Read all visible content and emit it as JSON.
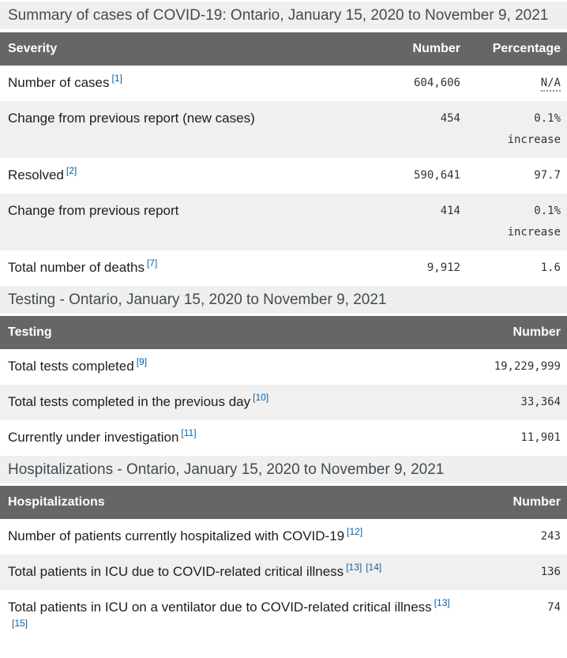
{
  "colors": {
    "header_bg": "#666666",
    "stripe_bg": "#f0f0f0",
    "caption_bg": "#efefef",
    "link_blue": "#0962a8"
  },
  "summary": {
    "caption": "Summary of cases of COVID-19: Ontario, January 15, 2020 to November 9, 2021",
    "col_severity": "Severity",
    "col_number": "Number",
    "col_percentage": "Percentage",
    "rows": [
      {
        "label": "Number of cases",
        "ref1": "[1]",
        "number": "604,606",
        "percentage": "N/A"
      },
      {
        "label": "Change from previous report (new cases)",
        "number": "454",
        "percentage": "0.1% increase"
      },
      {
        "label": "Resolved",
        "ref1": "[2]",
        "number": "590,641",
        "percentage": "97.7"
      },
      {
        "label": "Change from previous report",
        "number": "414",
        "percentage": "0.1% increase"
      },
      {
        "label": "Total number of deaths",
        "ref1": "[7]",
        "number": "9,912",
        "percentage": "1.6"
      }
    ]
  },
  "testing": {
    "caption": "Testing - Ontario, January 15, 2020 to November 9, 2021",
    "col_testing": "Testing",
    "col_number": "Number",
    "rows": [
      {
        "label": "Total tests completed",
        "ref1": "[9]",
        "number": "19,229,999"
      },
      {
        "label": "Total tests completed in the previous day",
        "ref1": "[10]",
        "number": "33,364"
      },
      {
        "label": "Currently under investigation",
        "ref1": "[11]",
        "number": "11,901"
      }
    ]
  },
  "hospitalizations": {
    "caption": "Hospitalizations - Ontario, January 15, 2020 to November 9, 2021",
    "col_hospitalizations": "Hospitalizations",
    "col_number": "Number",
    "rows": [
      {
        "label": "Number of patients currently hospitalized with COVID-19",
        "ref1": "[12]",
        "number": "243"
      },
      {
        "label": "Total patients in ICU due to COVID-related critical illness",
        "ref1": "[13]",
        "ref2": "[14]",
        "number": "136"
      },
      {
        "label": "Total patients in ICU on a ventilator due to COVID-related critical illness",
        "ref1": "[13]",
        "ref2": "[15]",
        "number": "74"
      }
    ]
  }
}
